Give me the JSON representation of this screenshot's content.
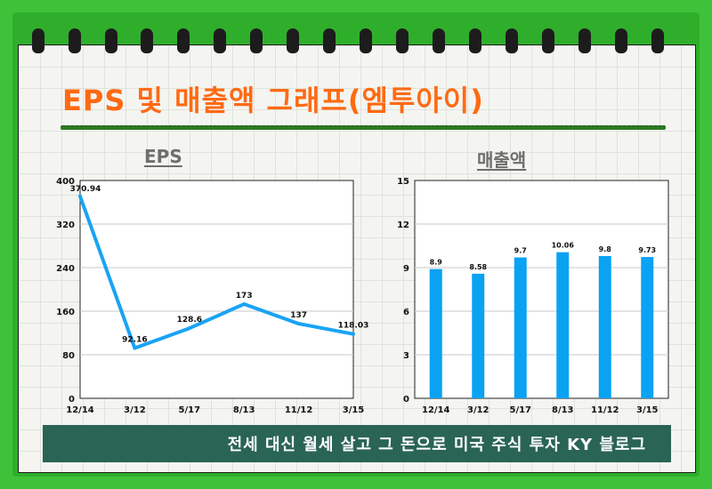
{
  "title": "EPS 및 매출액 그래프(엠투아이)",
  "footer": "전세 대신 월세 살고 그 돈으로 미국 주식 투자 KY 블로그",
  "chart_data": [
    {
      "type": "line",
      "title": "EPS",
      "categories": [
        "12/14",
        "3/12",
        "5/17",
        "8/13",
        "11/12",
        "3/15"
      ],
      "values": [
        370.94,
        92.16,
        128.6,
        173,
        137,
        118.03
      ],
      "data_labels": [
        "370.94",
        "92.16",
        "128.6",
        "173",
        "137",
        "118.03"
      ],
      "yticks": [
        0,
        80,
        160,
        240,
        320,
        400
      ],
      "ylim": [
        0,
        400
      ],
      "grid": true,
      "color": "#1aa3f5"
    },
    {
      "type": "bar",
      "title": "매출액",
      "categories": [
        "12/14",
        "3/12",
        "5/17",
        "8/13",
        "11/12",
        "3/15"
      ],
      "values": [
        8.9,
        8.58,
        9.7,
        10.06,
        9.8,
        9.73
      ],
      "data_labels": [
        "8.9",
        "8.58",
        "9.7",
        "10.06",
        "9.8",
        "9.73"
      ],
      "yticks": [
        0,
        3,
        6,
        9,
        12,
        15
      ],
      "ylim": [
        0,
        15
      ],
      "grid": true,
      "color": "#0aa2f2"
    }
  ]
}
